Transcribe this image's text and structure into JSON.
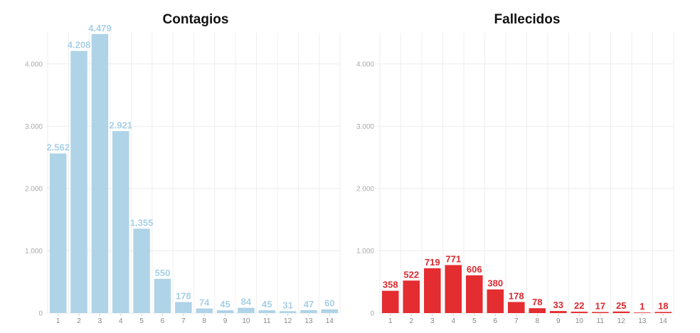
{
  "chart_data": [
    {
      "type": "bar",
      "title": "Contagios",
      "categories": [
        "1",
        "2",
        "3",
        "4",
        "5",
        "6",
        "7",
        "8",
        "9",
        "10",
        "11",
        "12",
        "13",
        "14"
      ],
      "values": [
        2562,
        4208,
        4479,
        2921,
        1355,
        550,
        178,
        74,
        45,
        84,
        45,
        31,
        47,
        60
      ],
      "value_labels": [
        "2.562",
        "4.208",
        "4.479",
        "2.921",
        "1.355",
        "550",
        "178",
        "74",
        "45",
        "84",
        "45",
        "31",
        "47",
        "60"
      ],
      "ylim": [
        0,
        4500
      ],
      "yticks": [
        0,
        1000,
        2000,
        3000,
        4000
      ],
      "ytick_labels": [
        "0",
        "1.000",
        "2.000",
        "3.000",
        "4.000"
      ],
      "color": "#afd3e7",
      "label_color": "#a7d0e6",
      "grid": true
    },
    {
      "type": "bar",
      "title": "Fallecidos",
      "categories": [
        "1",
        "2",
        "3",
        "4",
        "5",
        "6",
        "7",
        "8",
        "9",
        "10",
        "11",
        "12",
        "13",
        "14"
      ],
      "values": [
        358,
        522,
        719,
        771,
        606,
        380,
        178,
        78,
        33,
        22,
        17,
        25,
        1,
        18
      ],
      "value_labels": [
        "358",
        "522",
        "719",
        "771",
        "606",
        "380",
        "178",
        "78",
        "33",
        "22",
        "17",
        "25",
        "1",
        "18"
      ],
      "ylim": [
        0,
        4500
      ],
      "yticks": [
        0,
        1000,
        2000,
        3000,
        4000
      ],
      "ytick_labels": [
        "0",
        "1.000",
        "2.000",
        "3.000",
        "4.000"
      ],
      "color": "#e42d31",
      "label_color": "#d92a2f",
      "grid": true
    }
  ]
}
